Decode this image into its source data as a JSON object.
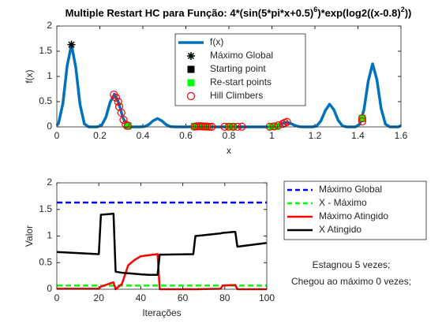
{
  "chart_data": [
    {
      "type": "line",
      "title_parts": [
        "Multiple Restart HC para Função:  4*(sin(5*pi*x+0.5)",
        "6",
        ")*exp(log2((x-0.8)",
        "2",
        "))"
      ],
      "xlabel": "x",
      "ylabel": "f(x)",
      "xlim": [
        0,
        1.6
      ],
      "xticks": [
        0,
        0.2,
        0.4,
        0.6,
        0.8,
        1,
        1.2,
        1.4,
        1.6
      ],
      "ylim": [
        0,
        2
      ],
      "yticks": [
        0,
        0.5,
        1,
        1.5,
        2
      ],
      "legend": "north",
      "series": [
        {
          "name": "f(x)",
          "color": "#0072bd",
          "width": 3.5,
          "x": [
            0,
            0.008,
            0.028,
            0.048,
            0.068,
            0.088,
            0.108,
            0.128,
            0.148,
            0.168,
            0.188,
            0.208,
            0.228,
            0.248,
            0.268,
            0.288,
            0.308,
            0.328,
            0.348,
            0.368,
            0.388,
            0.408,
            0.428,
            0.448,
            0.468,
            0.488,
            0.508,
            0.528,
            0.548,
            0.568,
            0.588,
            0.608,
            0.628,
            0.648,
            0.668,
            0.688,
            0.708,
            0.728,
            0.748,
            0.768,
            0.788,
            0.808,
            0.828,
            0.848,
            0.868,
            0.888,
            0.908,
            0.928,
            0.948,
            0.968,
            0.988,
            1.008,
            1.028,
            1.048,
            1.068,
            1.088,
            1.108,
            1.128,
            1.148,
            1.168,
            1.188,
            1.208,
            1.228,
            1.248,
            1.268,
            1.288,
            1.308,
            1.328,
            1.348,
            1.368,
            1.388,
            1.408,
            1.428,
            1.448,
            1.468,
            1.488,
            1.508,
            1.528,
            1.548,
            1.568,
            1.588,
            1.6
          ],
          "values": [
            0.03,
            0.07,
            0.46,
            1.21,
            1.63,
            1.18,
            0.44,
            0.06,
            0.001,
            0,
            0,
            0.03,
            0.19,
            0.49,
            0.65,
            0.47,
            0.17,
            0.025,
            0,
            0,
            0,
            0.007,
            0.047,
            0.123,
            0.166,
            0.12,
            0.045,
            0.006,
            0,
            0,
            0,
            0,
            0.003,
            0.009,
            0.012,
            0.008,
            0.003,
            0,
            0,
            0,
            0,
            0,
            0,
            0.001,
            0.002,
            0.001,
            0,
            0,
            0,
            0,
            0,
            0.003,
            0.024,
            0.065,
            0.09,
            0.068,
            0.027,
            0.004,
            0,
            0,
            0,
            0.017,
            0.12,
            0.32,
            0.45,
            0.34,
            0.13,
            0.02,
            0,
            0,
            0,
            0.049,
            0.34,
            0.91,
            1.25,
            0.94,
            0.36,
            0.055,
            0.001,
            0,
            0,
            0.026
          ]
        },
        {
          "name": "Máximo Global",
          "marker": "asterisk",
          "color": "#000000",
          "face": "#00ff00",
          "x": [
            0.068
          ],
          "values": [
            1.63
          ]
        },
        {
          "name": "Starting point",
          "marker": "square",
          "color": "#000000",
          "face": "#000000",
          "x": [
            0.33
          ],
          "values": [
            0.02
          ]
        },
        {
          "name": "Re-start points",
          "marker": "square",
          "color": "#00ff00",
          "face": "#00ff00",
          "x": [
            0.33,
            0.64,
            0.66,
            0.68,
            0.7,
            0.8,
            0.82,
            1,
            1.02,
            1.42
          ],
          "values": [
            0.02,
            0.01,
            0.01,
            0.01,
            0.005,
            0.005,
            0.005,
            0.005,
            0.01,
            0.17
          ]
        },
        {
          "name": "Hill Climbers",
          "marker": "circle",
          "color": "#ff0000",
          "face": "none",
          "x": [
            0.265,
            0.275,
            0.285,
            0.29,
            0.3,
            0.31,
            0.32,
            0.33,
            0.64,
            0.65,
            0.66,
            0.67,
            0.68,
            0.69,
            0.7,
            0.71,
            0.72,
            0.78,
            0.8,
            0.82,
            0.84,
            0.86,
            0.99,
            1.01,
            1.03,
            1.05,
            1.06,
            1.07,
            1.42,
            1.42
          ],
          "values": [
            0.64,
            0.58,
            0.5,
            0.4,
            0.28,
            0.14,
            0.05,
            0.02,
            0.005,
            0.01,
            0.012,
            0.012,
            0.01,
            0.008,
            0.005,
            0.003,
            0.002,
            0.002,
            0.003,
            0.002,
            0.003,
            0.004,
            0.003,
            0.01,
            0.03,
            0.06,
            0.08,
            0.1,
            0.11,
            0.17
          ]
        }
      ]
    },
    {
      "type": "line",
      "xlabel": "Iterações",
      "ylabel": "Valor",
      "xlim": [
        0,
        100
      ],
      "xticks": [
        0,
        20,
        40,
        60,
        80,
        100
      ],
      "ylim": [
        0,
        2
      ],
      "yticks": [
        0,
        0.5,
        1,
        1.5,
        2
      ],
      "legend": "eastoutside",
      "annotations": [
        "Estagnou 5 vezes;",
        "Chegou ao máximo 0 vezes;"
      ],
      "x": [
        0,
        20,
        21,
        27,
        28,
        31,
        34,
        37,
        40,
        44,
        48,
        49,
        65,
        66,
        78,
        79,
        85,
        86,
        100
      ],
      "series": [
        {
          "name": "Máximo Global",
          "color": "#0000ff",
          "dash": true,
          "width": 2.5,
          "values": [
            1.63,
            1.63,
            1.63,
            1.63,
            1.63,
            1.63,
            1.63,
            1.63,
            1.63,
            1.63,
            1.63,
            1.63,
            1.63,
            1.63,
            1.63,
            1.63,
            1.63,
            1.63,
            1.63
          ]
        },
        {
          "name": "X - Máximo",
          "color": "#00ff00",
          "dash": true,
          "width": 2.5,
          "values": [
            0.068,
            0.068,
            0.068,
            0.068,
            0.068,
            0.068,
            0.068,
            0.068,
            0.068,
            0.068,
            0.068,
            0.068,
            0.068,
            0.068,
            0.068,
            0.068,
            0.068,
            0.068,
            0.068
          ]
        },
        {
          "name": "Máximo Atingido",
          "color": "#ff0000",
          "width": 2.5,
          "values": [
            0.01,
            0.01,
            0.05,
            0.13,
            0,
            0.1,
            0.45,
            0.55,
            0.62,
            0.64,
            0.66,
            0,
            0,
            0,
            0.01,
            0.07,
            0.08,
            0,
            0
          ]
        },
        {
          "name": "X Atingido",
          "color": "#000000",
          "width": 2.5,
          "values": [
            0.7,
            0.66,
            1.4,
            1.42,
            0.33,
            0.31,
            0.3,
            0.29,
            0.28,
            0.27,
            0.27,
            0.65,
            0.66,
            1,
            1.05,
            1.06,
            1.08,
            0.8,
            0.87
          ]
        }
      ]
    }
  ]
}
